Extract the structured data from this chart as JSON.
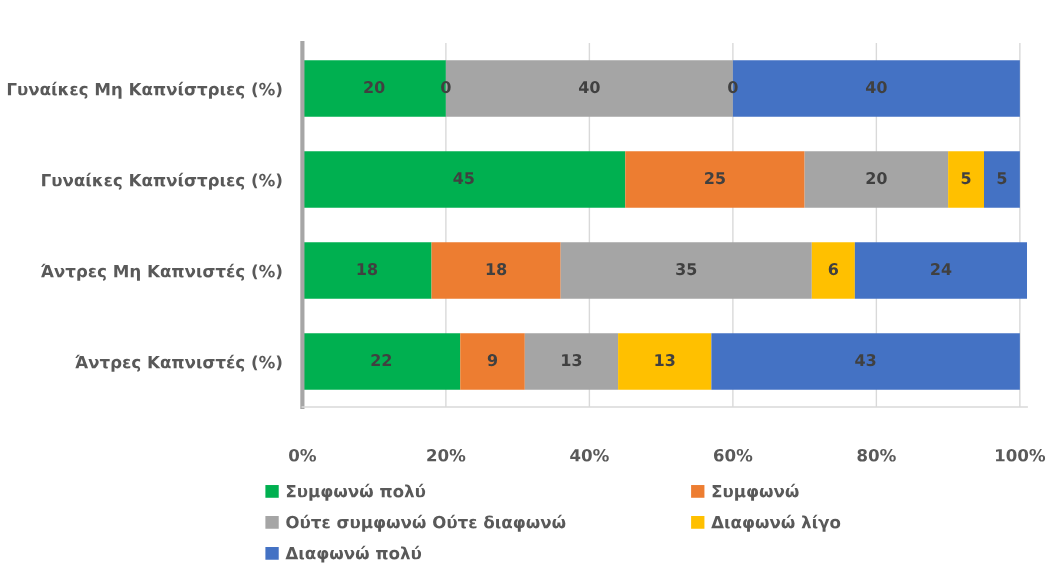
{
  "chart_data": {
    "type": "bar",
    "orientation": "horizontal",
    "stacked": true,
    "categories": [
      "Γυναίκες Μη Καπνίστριες (%)",
      "Γυναίκες Καπνίστριες (%)",
      "Άντρες Μη Καπνιστές (%)",
      "Άντρες Καπνιστές (%)"
    ],
    "series": [
      {
        "name": "Συμφωνώ πολύ",
        "color": "#00b050",
        "values": [
          20,
          45,
          18,
          22
        ],
        "value_labels": [
          "20",
          "45",
          "18",
          "22"
        ]
      },
      {
        "name": "Συμφωνώ",
        "color": "#ed7d31",
        "values": [
          0,
          25,
          18,
          9
        ],
        "value_labels": [
          null,
          "25",
          "18",
          "9"
        ]
      },
      {
        "name": "Ούτε συμφωνώ Ούτε διαφωνώ",
        "color": "#a5a5a5",
        "values": [
          40,
          20,
          35,
          13
        ],
        "value_labels": [
          "40",
          "20",
          "35",
          "13"
        ]
      },
      {
        "name": "Διαφωνώ λίγο",
        "color": "#ffc000",
        "values": [
          0,
          5,
          6,
          13
        ],
        "value_labels": [
          null,
          "5",
          "6",
          "13"
        ]
      },
      {
        "name": "Διαφωνώ πολύ",
        "color": "#4472c4",
        "values": [
          40,
          5,
          24,
          43
        ],
        "value_labels": [
          "40",
          "5",
          "24",
          "43"
        ]
      }
    ],
    "annotations": [
      {
        "text": "0",
        "x": 20,
        "y": "Γυναίκες Μη Καπνίστριες (%)"
      },
      {
        "text": "0",
        "x": 60,
        "y": "Γυναίκες Μη Καπνίστριες (%)"
      }
    ],
    "xlim": [
      0,
      101
    ],
    "xticks": [
      {
        "value": 0,
        "label": "0%"
      },
      {
        "value": 20,
        "label": "20%"
      },
      {
        "value": 40,
        "label": "40%"
      },
      {
        "value": 60,
        "label": "60%"
      },
      {
        "value": 80,
        "label": "80%"
      },
      {
        "value": 100,
        "label": "100%"
      }
    ],
    "grid": "x",
    "legend": "bottom"
  }
}
